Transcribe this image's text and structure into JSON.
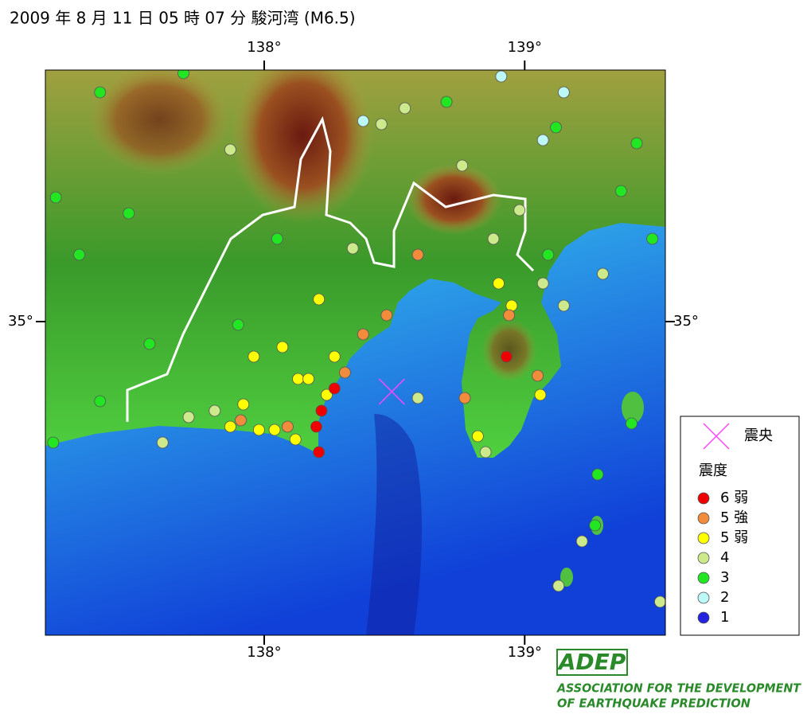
{
  "title": "2009 年 8 月 11 日 05 時 07 分 駿河湾 (M6.5)",
  "map": {
    "lonlim": [
      137.16,
      139.54
    ],
    "latlim": [
      34.015,
      35.79
    ],
    "lonticks": [
      {
        "value": 138,
        "label": "138°"
      },
      {
        "value": 139,
        "label": "139°"
      }
    ],
    "latticks": [
      {
        "value": 35,
        "label": "35°"
      }
    ],
    "epicenter": {
      "lon": 138.49,
      "lat": 34.78,
      "color": "#ff44ff"
    }
  },
  "legend": {
    "epicenter_label": "震央",
    "title": "震度",
    "items": [
      {
        "label": "6 弱",
        "color": "#ee0000",
        "stations": [
          [
            138.27,
            34.79
          ],
          [
            138.22,
            34.72
          ],
          [
            138.2,
            34.67
          ],
          [
            138.21,
            34.59
          ],
          [
            138.93,
            34.89
          ]
        ]
      },
      {
        "label": "5 強",
        "color": "#f08c3c",
        "stations": [
          [
            138.38,
            34.96
          ],
          [
            138.47,
            35.02
          ],
          [
            138.59,
            35.21
          ],
          [
            138.94,
            35.02
          ],
          [
            138.77,
            34.76
          ],
          [
            137.91,
            34.69
          ],
          [
            138.09,
            34.67
          ],
          [
            138.31,
            34.84
          ],
          [
            139.05,
            34.83
          ]
        ]
      },
      {
        "label": "5 弱",
        "color": "#ffff00",
        "stations": [
          [
            138.21,
            35.07
          ],
          [
            138.07,
            34.92
          ],
          [
            138.13,
            34.82
          ],
          [
            138.17,
            34.82
          ],
          [
            138.24,
            34.77
          ],
          [
            138.27,
            34.89
          ],
          [
            137.92,
            34.74
          ],
          [
            137.98,
            34.66
          ],
          [
            138.04,
            34.66
          ],
          [
            138.12,
            34.63
          ],
          [
            137.87,
            34.67
          ],
          [
            138.9,
            35.12
          ],
          [
            138.95,
            35.05
          ],
          [
            138.82,
            34.64
          ],
          [
            139.06,
            34.77
          ],
          [
            137.96,
            34.89
          ]
        ]
      },
      {
        "label": "4",
        "color": "#ccea8c",
        "stations": [
          [
            137.61,
            34.62
          ],
          [
            137.71,
            34.7
          ],
          [
            137.81,
            34.72
          ],
          [
            138.34,
            35.23
          ],
          [
            138.59,
            34.76
          ],
          [
            138.85,
            34.59
          ],
          [
            139.07,
            35.12
          ],
          [
            139.15,
            35.05
          ],
          [
            139.3,
            35.15
          ],
          [
            138.98,
            35.35
          ],
          [
            139.22,
            34.31
          ],
          [
            139.13,
            34.17
          ],
          [
            139.52,
            34.12
          ],
          [
            137.87,
            35.54
          ],
          [
            138.54,
            35.67
          ],
          [
            138.45,
            35.62
          ],
          [
            138.88,
            35.26
          ],
          [
            138.76,
            35.49
          ]
        ]
      },
      {
        "label": "3",
        "color": "#22e622",
        "stations": [
          [
            137.19,
            34.62
          ],
          [
            137.37,
            34.75
          ],
          [
            137.56,
            34.93
          ],
          [
            137.29,
            35.21
          ],
          [
            137.2,
            35.39
          ],
          [
            137.37,
            35.72
          ],
          [
            137.69,
            35.78
          ],
          [
            137.9,
            34.99
          ],
          [
            138.05,
            35.26
          ],
          [
            138.7,
            35.69
          ],
          [
            139.12,
            35.61
          ],
          [
            139.43,
            35.56
          ],
          [
            139.37,
            35.41
          ],
          [
            139.28,
            34.52
          ],
          [
            139.27,
            34.36
          ],
          [
            139.41,
            34.68
          ],
          [
            139.09,
            35.21
          ],
          [
            139.49,
            35.26
          ],
          [
            137.48,
            35.34
          ]
        ]
      },
      {
        "label": "2",
        "color": "#bdf8f8",
        "stations": [
          [
            138.38,
            35.63
          ],
          [
            138.91,
            35.77
          ],
          [
            139.07,
            35.57
          ],
          [
            139.15,
            35.72
          ]
        ]
      },
      {
        "label": "1",
        "color": "#2424e0",
        "stations": []
      }
    ]
  },
  "logo": {
    "name": "ADEP",
    "line1": "ASSOCIATION  FOR THE DEVELOPMENT",
    "line2": "OF EARTHQUAKE PREDICTION"
  }
}
